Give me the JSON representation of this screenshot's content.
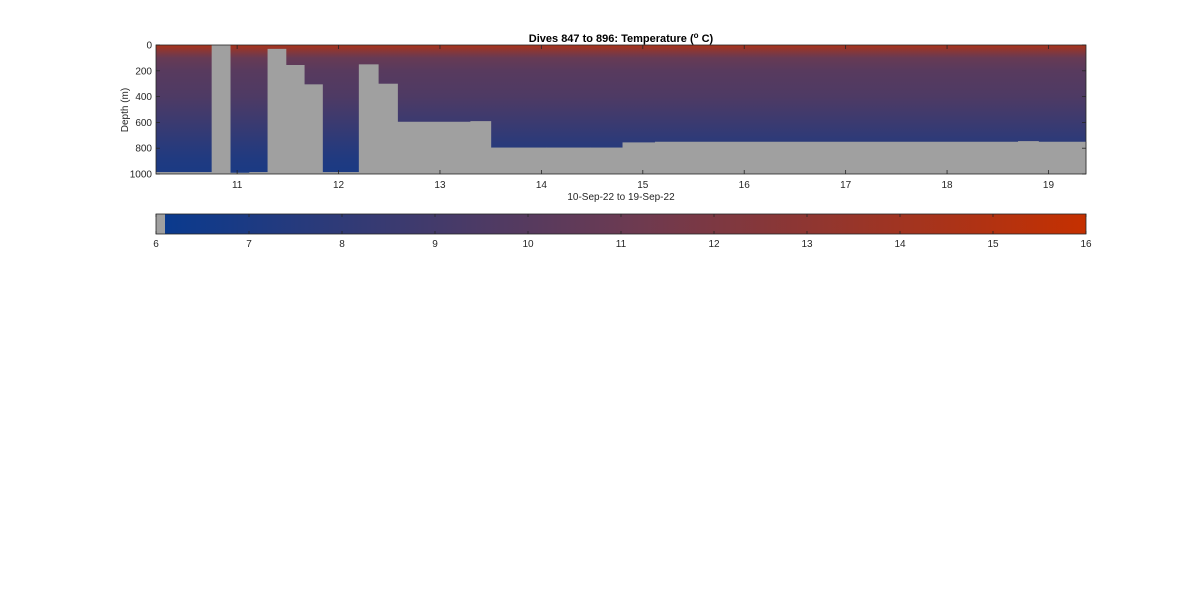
{
  "chart_data": {
    "type": "heatmap",
    "title_main": "Dives 847 to 896: Temperature (",
    "title_sup": "o",
    "title_end": " C)",
    "xlabel": "10-Sep-22 to 19-Sep-22",
    "ylabel": "Depth (m)",
    "xlim": [
      10.2,
      19.37
    ],
    "ylim": [
      0,
      1000
    ],
    "y_reversed": true,
    "x_ticks": [
      11,
      12,
      13,
      14,
      15,
      16,
      17,
      18,
      19
    ],
    "x_tick_labels": [
      "11",
      "12",
      "13",
      "14",
      "15",
      "16",
      "17",
      "18",
      "19"
    ],
    "y_ticks": [
      0,
      200,
      400,
      600,
      800,
      1000
    ],
    "y_tick_labels": [
      "0",
      "200",
      "400",
      "600",
      "800",
      "1000"
    ],
    "grid": false,
    "no_data_color": "#a0a0a0",
    "colormap": [
      "#0a3a8e",
      "#6b3a52",
      "#c53000"
    ],
    "colorbar": {
      "location": "bottom",
      "range": [
        6,
        16
      ],
      "ticks": [
        6,
        7,
        8,
        9,
        10,
        11,
        12,
        13,
        14,
        15,
        16
      ],
      "tick_labels": [
        "6",
        "7",
        "8",
        "9",
        "10",
        "11",
        "12",
        "13",
        "14",
        "15",
        "16"
      ],
      "no_data_below": 6.1
    },
    "temperature_profile": {
      "depth_m": [
        0,
        50,
        100,
        200,
        400,
        600,
        700,
        800,
        900,
        1000
      ],
      "temp_c": [
        14.5,
        12.5,
        10.8,
        10.0,
        9.5,
        8.5,
        8.0,
        7.5,
        7.1,
        6.8
      ]
    },
    "no_data_columns": [
      {
        "x0": 10.2,
        "x1": 10.75,
        "top": 0,
        "bottom": 985
      },
      {
        "x0": 10.75,
        "x1": 10.93,
        "top": 0,
        "bottom": 0
      },
      {
        "x0": 10.93,
        "x1": 11.12,
        "top": 0,
        "bottom": 990
      },
      {
        "x0": 11.12,
        "x1": 11.3,
        "top": 0,
        "bottom": 985
      },
      {
        "x0": 11.3,
        "x1": 11.48,
        "top": 0,
        "bottom": 30
      },
      {
        "x0": 11.48,
        "x1": 11.66,
        "top": 0,
        "bottom": 155
      },
      {
        "x0": 11.66,
        "x1": 11.84,
        "top": 0,
        "bottom": 305
      },
      {
        "x0": 11.84,
        "x1": 12.2,
        "top": 0,
        "bottom": 985
      },
      {
        "x0": 12.2,
        "x1": 12.39,
        "top": 0,
        "bottom": 150
      },
      {
        "x0": 12.39,
        "x1": 12.58,
        "top": 0,
        "bottom": 300
      },
      {
        "x0": 12.58,
        "x1": 13.3,
        "top": 0,
        "bottom": 595
      },
      {
        "x0": 13.3,
        "x1": 13.5,
        "top": 0,
        "bottom": 590
      },
      {
        "x0": 13.5,
        "x1": 14.05,
        "top": 0,
        "bottom": 795
      },
      {
        "x0": 14.05,
        "x1": 14.48,
        "top": 0,
        "bottom": 795
      },
      {
        "x0": 14.48,
        "x1": 14.8,
        "top": 0,
        "bottom": 795
      },
      {
        "x0": 14.8,
        "x1": 15.12,
        "top": 0,
        "bottom": 755
      },
      {
        "x0": 15.12,
        "x1": 18.7,
        "top": 0,
        "bottom": 750
      },
      {
        "x0": 18.7,
        "x1": 18.9,
        "top": 0,
        "bottom": 745
      },
      {
        "x0": 18.9,
        "x1": 19.37,
        "top": 0,
        "bottom": 750
      }
    ],
    "no_data_full_columns": [
      {
        "x0": 10.75,
        "x1": 10.93
      }
    ]
  }
}
